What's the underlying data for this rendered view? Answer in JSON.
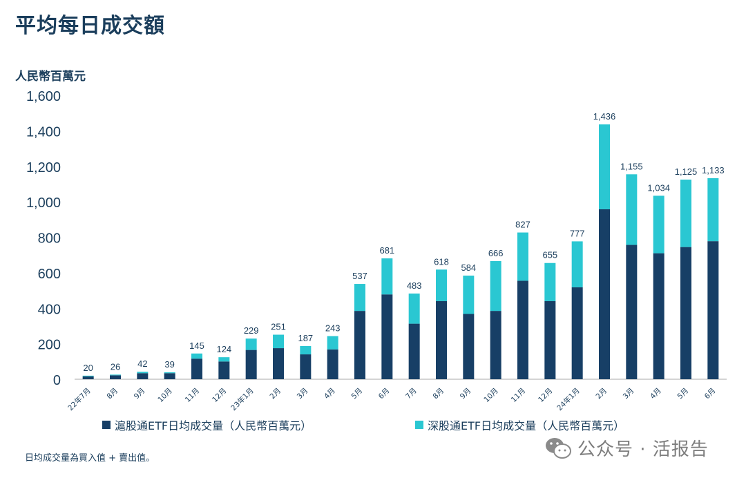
{
  "title": "平均每日成交額",
  "unit_label": "人民幣百萬元",
  "legend": {
    "series1": "滬股通ETF日均成交量（人民幣百萬元）",
    "series2": "深股通ETF日均成交量（人民幣百萬元）"
  },
  "footnote": "日均成交量為買入值 + 賣出值。",
  "watermark": "公众号 · 活报告",
  "colors": {
    "series1": "#173f66",
    "series2": "#2ac7d2",
    "text": "#1b3e5c",
    "axis": "#a9a9a9"
  },
  "chart_data": {
    "type": "bar",
    "stacked": true,
    "title": "平均每日成交額",
    "ylabel": "人民幣百萬元",
    "ylim": [
      0,
      1600
    ],
    "yticks": [
      0,
      200,
      400,
      600,
      800,
      1000,
      1200,
      1400,
      1600
    ],
    "ytick_labels": [
      "0",
      "200",
      "400",
      "600",
      "800",
      "1,000",
      "1,200",
      "1,400",
      "1,600"
    ],
    "categories": [
      "22年7月",
      "8月",
      "9月",
      "10月",
      "11月",
      "12月",
      "23年1月",
      "2月",
      "3月",
      "4月",
      "5月",
      "6月",
      "7月",
      "8月",
      "9月",
      "10月",
      "11月",
      "12月",
      "24年1月",
      "2月",
      "3月",
      "4月",
      "5月",
      "6月"
    ],
    "series": [
      {
        "name": "滬股通ETF日均成交量（人民幣百萬元）",
        "values": [
          16,
          22,
          34,
          34,
          116,
          100,
          165,
          175,
          140,
          168,
          385,
          478,
          313,
          440,
          368,
          385,
          555,
          440,
          518,
          958,
          757,
          710,
          745,
          778
        ]
      },
      {
        "name": "深股通ETF日均成交量（人民幣百萬元）",
        "values": [
          4,
          4,
          8,
          5,
          29,
          24,
          64,
          76,
          47,
          75,
          152,
          203,
          170,
          178,
          216,
          281,
          272,
          215,
          259,
          478,
          398,
          324,
          380,
          355
        ]
      }
    ],
    "totals": [
      20,
      26,
      42,
      39,
      145,
      124,
      229,
      251,
      187,
      243,
      537,
      681,
      483,
      618,
      584,
      666,
      827,
      655,
      777,
      1436,
      1155,
      1034,
      1125,
      1133
    ],
    "total_labels": [
      "20",
      "26",
      "42",
      "39",
      "145",
      "124",
      "229",
      "251",
      "187",
      "243",
      "537",
      "681",
      "483",
      "618",
      "584",
      "666",
      "827",
      "655",
      "777",
      "1,436",
      "1,155",
      "1,034",
      "1,125",
      "1,133"
    ]
  }
}
